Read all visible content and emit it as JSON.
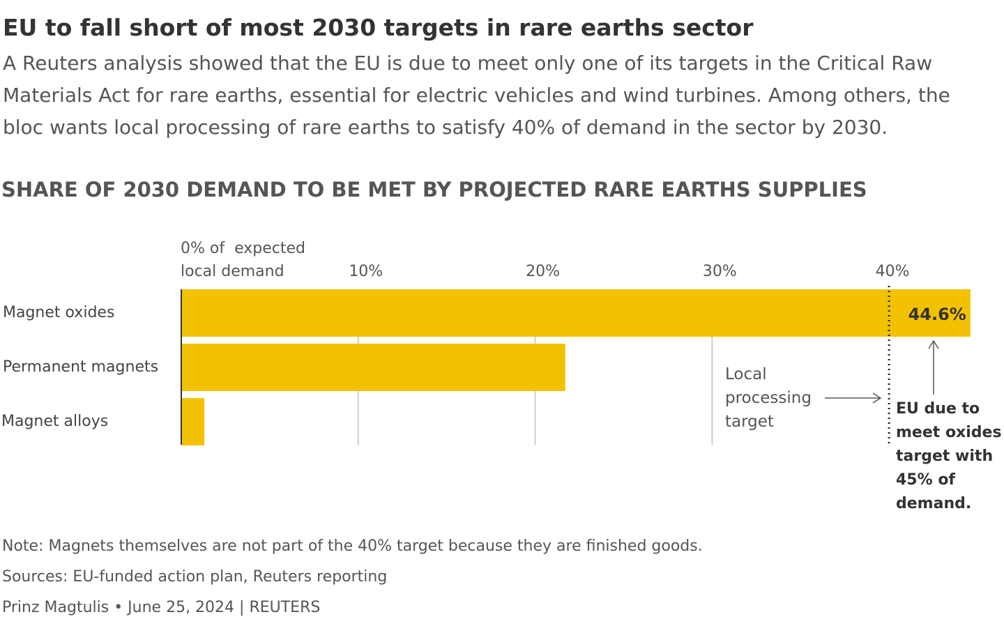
{
  "chart_data": {
    "type": "bar",
    "orientation": "horizontal",
    "title": "EU to fall short of most 2030 targets in rare earths sector",
    "subtitle": "A Reuters analysis showed that the EU is due to meet only one of its targets in the Critical Raw Materials Act for rare earths, essential for electric vehicles and wind turbines. Among others, the bloc wants local processing of rare earths to satisfy 40% of demand in the sector by 2030.",
    "chart_title": "SHARE OF 2030 DEMAND TO BE MET BY PROJECTED RARE EARTHS SUPPLIES",
    "categories": [
      "Magnet oxides",
      "Permanent magnets",
      "Magnet alloys"
    ],
    "values": [
      44.6,
      21.7,
      1.3
    ],
    "value_labels": [
      "44.6%",
      null,
      null
    ],
    "color": "#f2c200",
    "xlim": [
      0,
      45
    ],
    "xticks": [
      {
        "value": 0,
        "label": "0% of  expected local demand"
      },
      {
        "value": 10,
        "label": "10%"
      },
      {
        "value": 20,
        "label": "20%"
      },
      {
        "value": 30,
        "label": "30%"
      },
      {
        "value": 40,
        "label": "40%"
      }
    ],
    "grid": true,
    "target": 40,
    "annotations": [
      "Local processing target",
      "EU due to meet oxides target with 45% of demand."
    ],
    "note": "Note: Magnets themselves are not part of the 40% target because they are finished goods.",
    "sources": "Sources: EU-funded action plan, Reuters reporting",
    "byline": "Prinz Magtulis • June 25, 2024 | REUTERS"
  }
}
